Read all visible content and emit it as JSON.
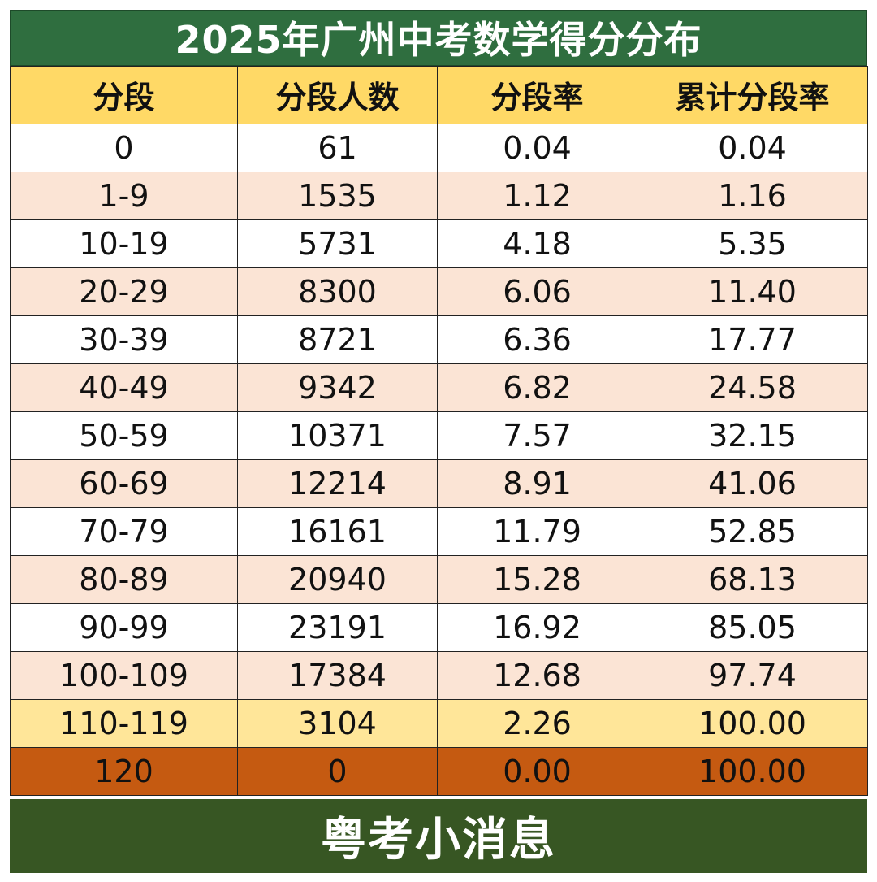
{
  "title": "2025年广州中考数学得分分布",
  "headers": [
    "分段",
    "分段人数",
    "分段率",
    "累计分段率"
  ],
  "rows": [
    {
      "seg": "0",
      "count": "61",
      "rate": "0.04",
      "cum": "0.04"
    },
    {
      "seg": "1-9",
      "count": "1535",
      "rate": "1.12",
      "cum": "1.16"
    },
    {
      "seg": "10-19",
      "count": "5731",
      "rate": "4.18",
      "cum": "5.35"
    },
    {
      "seg": "20-29",
      "count": "8300",
      "rate": "6.06",
      "cum": "11.40"
    },
    {
      "seg": "30-39",
      "count": "8721",
      "rate": "6.36",
      "cum": "17.77"
    },
    {
      "seg": "40-49",
      "count": "9342",
      "rate": "6.82",
      "cum": "24.58"
    },
    {
      "seg": "50-59",
      "count": "10371",
      "rate": "7.57",
      "cum": "32.15"
    },
    {
      "seg": "60-69",
      "count": "12214",
      "rate": "8.91",
      "cum": "41.06"
    },
    {
      "seg": "70-79",
      "count": "16161",
      "rate": "11.79",
      "cum": "52.85"
    },
    {
      "seg": "80-89",
      "count": "20940",
      "rate": "15.28",
      "cum": "68.13"
    },
    {
      "seg": "90-99",
      "count": "23191",
      "rate": "16.92",
      "cum": "85.05"
    },
    {
      "seg": "100-109",
      "count": "17384",
      "rate": "12.68",
      "cum": "97.74"
    },
    {
      "seg": "110-119",
      "count": "3104",
      "rate": "2.26",
      "cum": "100.00"
    },
    {
      "seg": "120",
      "count": "0",
      "rate": "0.00",
      "cum": "100.00"
    }
  ],
  "footer": "粤考小消息",
  "colors": {
    "title_bg": "#2f6e3f",
    "header_bg": "#ffd966",
    "row_alt_bg": "#fbe4d5",
    "row_highlight_bg": "#ffe699",
    "row_last_bg": "#c55a11",
    "footer_bg": "#375623"
  }
}
